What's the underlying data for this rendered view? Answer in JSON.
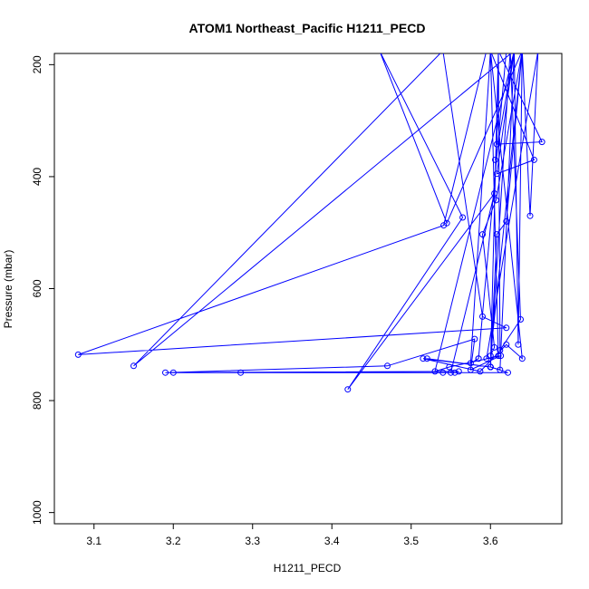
{
  "chart_data": {
    "type": "line",
    "title": "ATOM1 Northeast_Pacific H1211_PECD",
    "xlabel": "H1211_PECD",
    "ylabel": "Pressure (mbar)",
    "xlim": [
      3.05,
      3.69
    ],
    "ylim": [
      1020,
      180
    ],
    "y_reversed": true,
    "x_ticks": [
      3.1,
      3.2,
      3.3,
      3.4,
      3.5,
      3.6
    ],
    "x_tick_labels": [
      "3.1",
      "3.2",
      "3.3",
      "3.4",
      "3.5",
      "3.6"
    ],
    "y_ticks": [
      200,
      400,
      600,
      800,
      1000
    ],
    "y_tick_labels": [
      "200",
      "400",
      "600",
      "800",
      "1000"
    ],
    "grid": false,
    "legend": "none",
    "series_color": "#0000ff",
    "series": [
      {
        "x": [
          3.61,
          3.608,
          3.665,
          3.61,
          3.66,
          3.595,
          3.61,
          3.6,
          3.575,
          3.585,
          3.585,
          3.62,
          3.628,
          3.66,
          3.65,
          3.64,
          3.635,
          3.63,
          3.595,
          3.541,
          3.08,
          3.62,
          3.59,
          3.54,
          3.15,
          3.63,
          3.612,
          3.6,
          3.625,
          3.638,
          3.612,
          3.61,
          3.6,
          3.608,
          3.62,
          3.64,
          3.6,
          3.605,
          3.59,
          3.607,
          3.64,
          3.545,
          3.46,
          3.565,
          3.42,
          3.605,
          3.55,
          3.555,
          3.285,
          3.56,
          3.19,
          3.47,
          3.58,
          3.575,
          3.613,
          3.548,
          3.53,
          3.63,
          3.606,
          3.63,
          3.608,
          3.655,
          3.6,
          3.64,
          3.62,
          3.587,
          3.515,
          3.6,
          3.52,
          3.6,
          3.622,
          3.2,
          3.54
        ],
        "y": [
          175,
          342,
          338,
          175,
          175,
          725,
          720,
          175,
          733,
          725,
          725,
          175,
          175,
          175,
          470,
          175,
          700,
          175,
          175,
          487,
          718,
          670,
          650,
          175,
          738,
          175,
          745,
          740,
          175,
          655,
          710,
          175,
          740,
          503,
          480,
          175,
          720,
          705,
          503,
          442,
          175,
          483,
          175,
          473,
          780,
          430,
          750,
          750,
          750,
          748,
          750,
          738,
          690,
          745,
          720,
          740,
          748,
          175,
          370,
          175,
          395,
          370,
          175,
          725,
          700,
          748,
          725,
          740,
          725,
          740,
          750,
          750,
          750
        ]
      }
    ]
  }
}
